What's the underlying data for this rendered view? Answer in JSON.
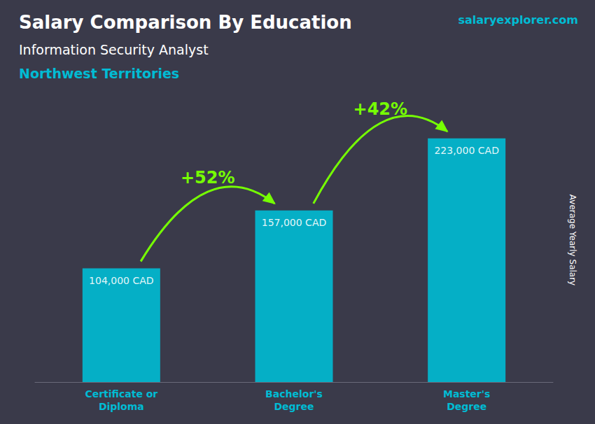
{
  "chart_data": {
    "type": "bar",
    "title": "Salary Comparison By Education",
    "subtitle": [
      "Information Security Analyst",
      "Northwest Territories"
    ],
    "ylabel": "Average Yearly Salary",
    "categories": [
      "Certificate or\nDiploma",
      "Bachelor's\nDegree",
      "Master's\nDegree"
    ],
    "values": [
      104000,
      157000,
      223000
    ],
    "value_labels": [
      "104,000 CAD",
      "157,000 CAD",
      "223,000 CAD"
    ],
    "data_labels": true,
    "color": "#00bcd4",
    "ylim": [
      0,
      260000
    ],
    "tick_labels": "x",
    "grid": false,
    "annotations": [
      {
        "text": "+52%",
        "from": "Certificate or\nDiploma",
        "to": "Bachelor's\nDegree",
        "color": "#76ff03"
      },
      {
        "text": "+42%",
        "from": "Bachelor's\nDegree",
        "to": "Master's\nDegree",
        "color": "#76ff03"
      },
      {
        "text": "salaryexplorer.com"
      }
    ]
  }
}
